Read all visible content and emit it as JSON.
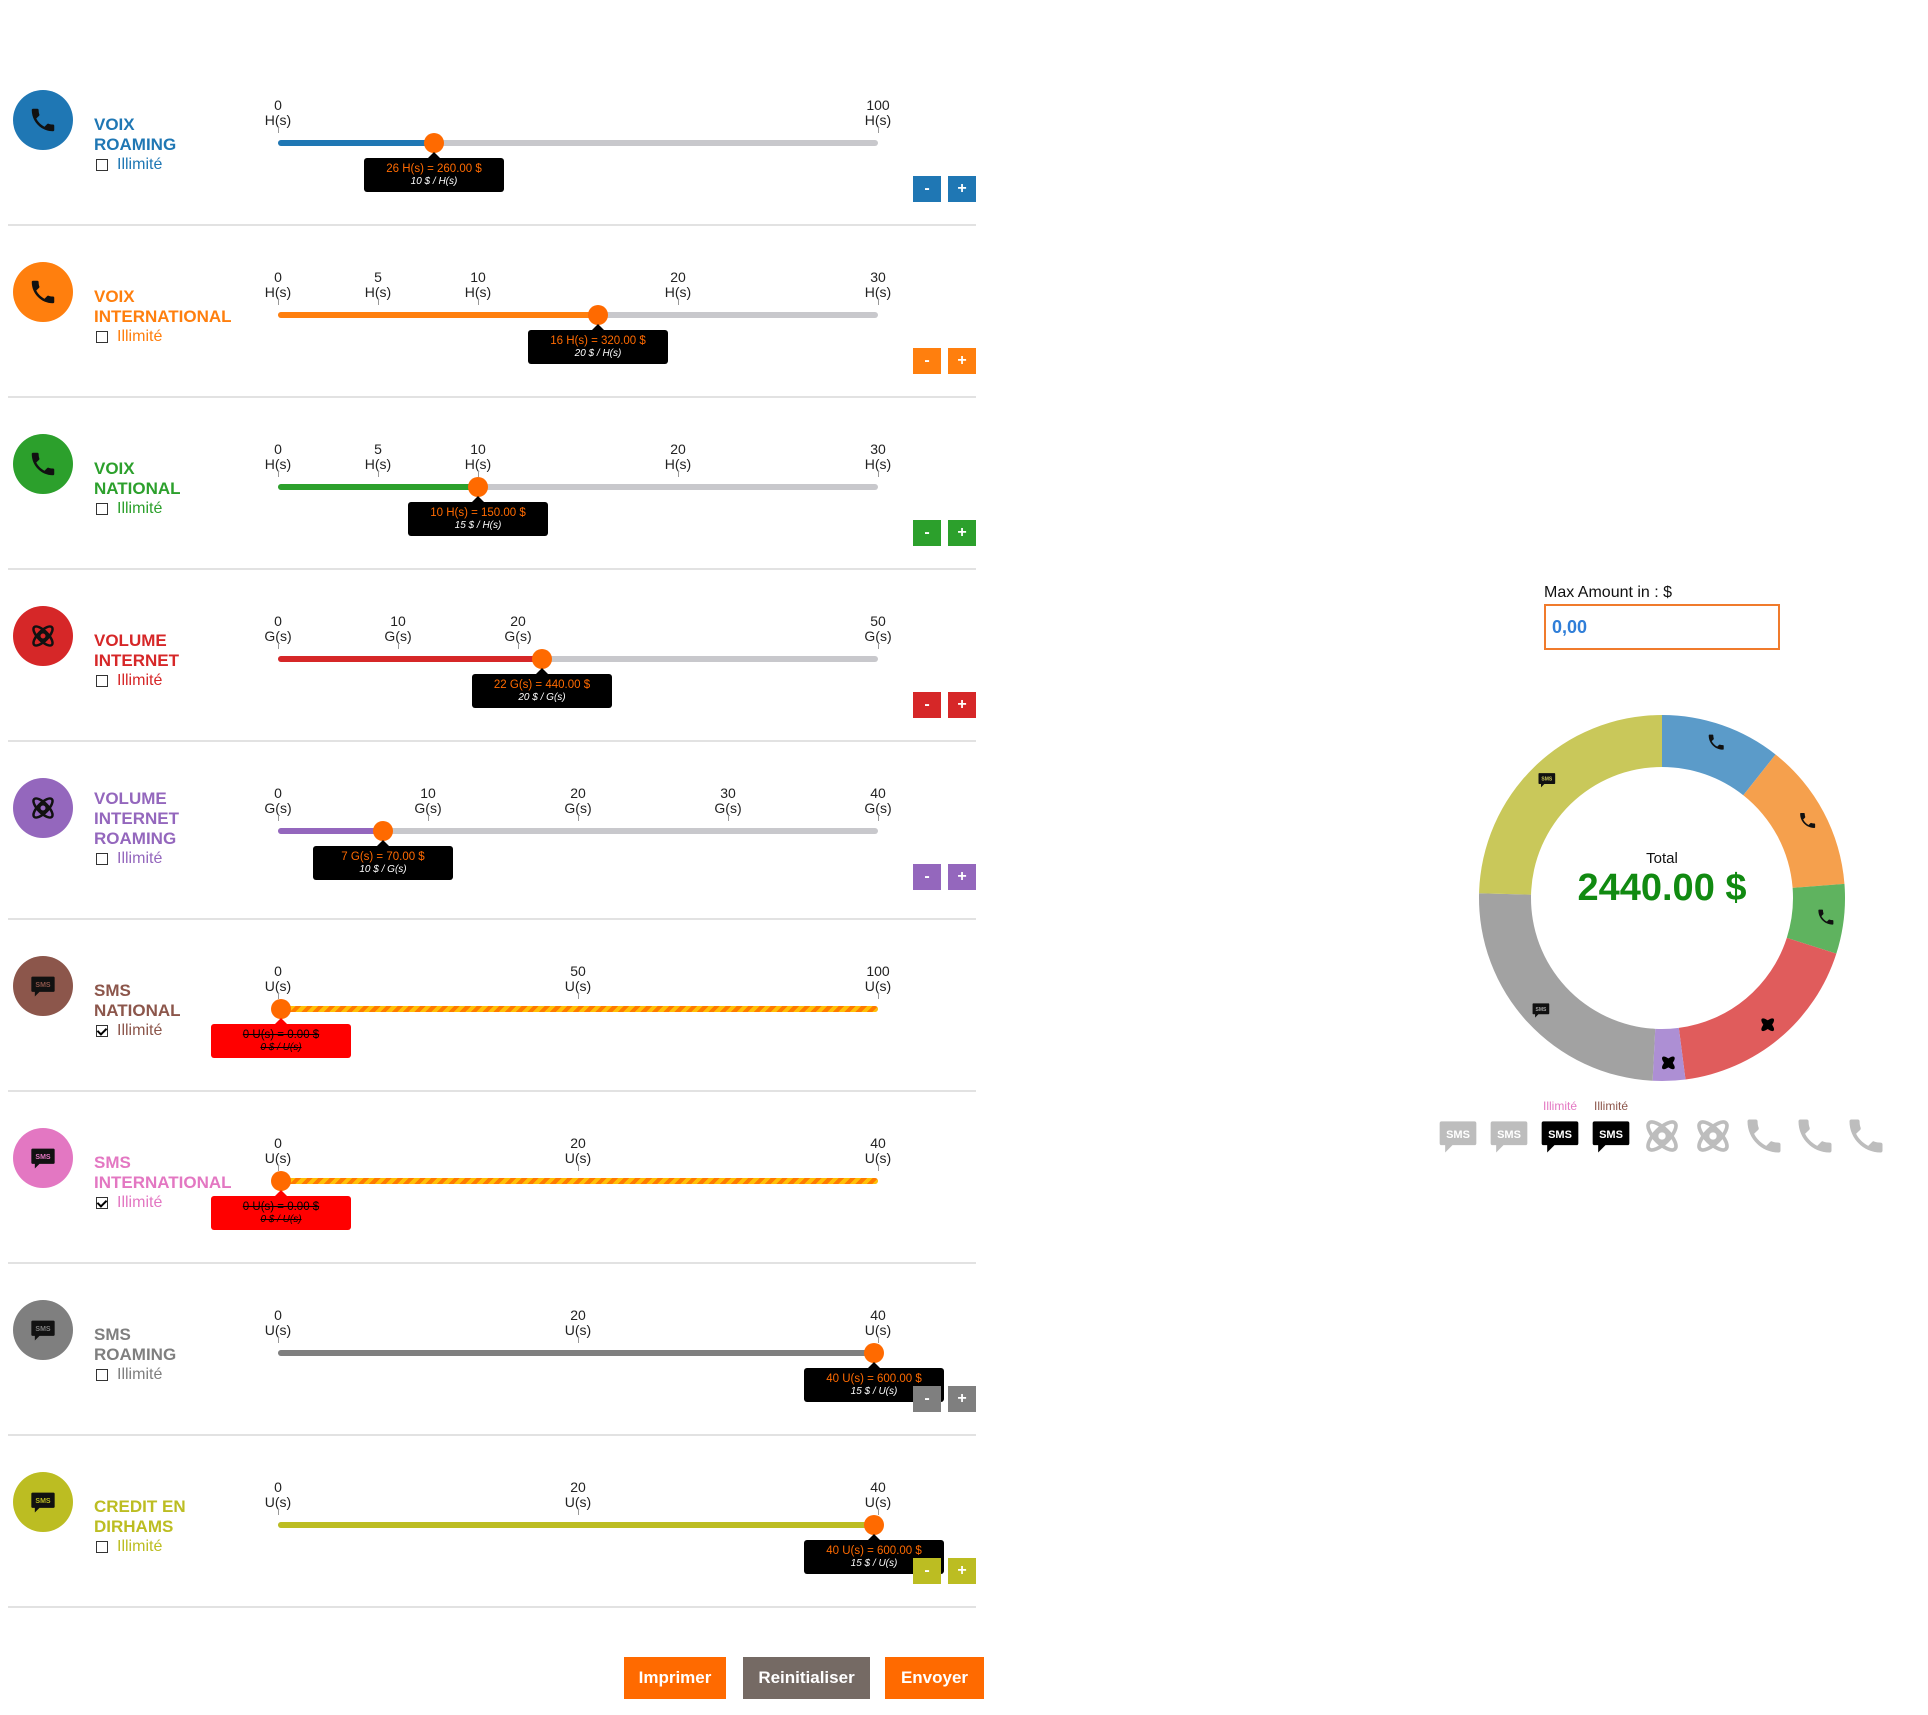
{
  "rows": [
    {
      "id": "voix-roaming",
      "title": [
        "VOIX",
        "ROAMING"
      ],
      "color": "#1f77b4",
      "icon": "phone",
      "unlimited_label": "Illimité",
      "checked": false,
      "unit": "H(s)",
      "ticks": [
        0,
        100
      ],
      "min": 0,
      "max": 100,
      "value": 26,
      "tip_line1": "26 H(s) = 260.00 $",
      "tip_line2": "10 $ / H(s)",
      "controls": true,
      "minus": "-",
      "plus": "+"
    },
    {
      "id": "voix-international",
      "title": [
        "VOIX",
        "INTERNATIONAL"
      ],
      "color": "#ff7f0e",
      "icon": "phone",
      "unlimited_label": "Illimité",
      "checked": false,
      "unit": "H(s)",
      "ticks": [
        0,
        5,
        10,
        20,
        30
      ],
      "min": 0,
      "max": 30,
      "value": 16,
      "tip_line1": "16 H(s) = 320.00 $",
      "tip_line2": "20 $ / H(s)",
      "controls": true,
      "minus": "-",
      "plus": "+"
    },
    {
      "id": "voix-national",
      "title": [
        "VOIX",
        "NATIONAL"
      ],
      "color": "#2ca02c",
      "icon": "phone",
      "unlimited_label": "Illimité",
      "checked": false,
      "unit": "H(s)",
      "ticks": [
        0,
        5,
        10,
        20,
        30
      ],
      "min": 0,
      "max": 30,
      "value": 10,
      "tip_line1": "10 H(s) = 150.00 $",
      "tip_line2": "15 $ / H(s)",
      "controls": true,
      "minus": "-",
      "plus": "+"
    },
    {
      "id": "volume-internet",
      "title": [
        "VOLUME",
        "INTERNET"
      ],
      "color": "#d62728",
      "icon": "globe",
      "unlimited_label": "Illimité",
      "checked": false,
      "unit": "G(s)",
      "ticks": [
        0,
        10,
        20,
        50
      ],
      "min": 0,
      "max": 50,
      "value": 22,
      "tip_line1": "22 G(s) = 440.00 $",
      "tip_line2": "20 $ / G(s)",
      "controls": true,
      "minus": "-",
      "plus": "+"
    },
    {
      "id": "volume-internet-roaming",
      "title": [
        "VOLUME",
        "INTERNET",
        "ROAMING"
      ],
      "color": "#9467bd",
      "icon": "globe",
      "unlimited_label": "Illimité",
      "checked": false,
      "unit": "G(s)",
      "ticks": [
        0,
        10,
        20,
        30,
        40
      ],
      "min": 0,
      "max": 40,
      "value": 7,
      "tip_line1": "7 G(s) = 70.00 $",
      "tip_line2": "10 $ / G(s)",
      "controls": true,
      "minus": "-",
      "plus": "+"
    },
    {
      "id": "sms-national",
      "title": [
        "SMS",
        "NATIONAL"
      ],
      "color": "#8c564b",
      "icon": "sms",
      "unlimited_label": "Illimité",
      "checked": true,
      "unit": "U(s)",
      "ticks": [
        0,
        50,
        100
      ],
      "min": 0,
      "max": 100,
      "value": 0,
      "tip_line1": "0 U(s) = 0.00 $",
      "tip_line2": "0 $ / U(s)",
      "controls": false
    },
    {
      "id": "sms-international",
      "title": [
        "SMS",
        "INTERNATIONAL"
      ],
      "color": "#e377c2",
      "icon": "sms",
      "unlimited_label": "Illimité",
      "checked": true,
      "unit": "U(s)",
      "ticks": [
        0,
        20,
        40
      ],
      "min": 0,
      "max": 40,
      "value": 0,
      "tip_line1": "0 U(s) = 0.00 $",
      "tip_line2": "0 $ / U(s)",
      "controls": false
    },
    {
      "id": "sms-roaming",
      "title": [
        "SMS",
        "ROAMING"
      ],
      "color": "#7f7f7f",
      "icon": "sms",
      "unlimited_label": "Illimité",
      "checked": false,
      "unit": "U(s)",
      "ticks": [
        0,
        20,
        40
      ],
      "min": 0,
      "max": 40,
      "value": 40,
      "tip_line1": "40 U(s) = 600.00 $",
      "tip_line2": "15 $ / U(s)",
      "controls": true,
      "minus": "-",
      "plus": "+"
    },
    {
      "id": "credit-en-dirhams",
      "title": [
        "CREDIT EN",
        "DIRHAMS"
      ],
      "color": "#bcbd22",
      "icon": "sms",
      "unlimited_label": "Illimité",
      "checked": false,
      "unit": "U(s)",
      "ticks": [
        0,
        20,
        40
      ],
      "min": 0,
      "max": 40,
      "value": 40,
      "tip_line1": "40 U(s) = 600.00 $",
      "tip_line2": "15 $ / U(s)",
      "controls": true,
      "minus": "-",
      "plus": "+"
    }
  ],
  "buttons": {
    "print": "Imprimer",
    "reset": "Reinitialiser",
    "send": "Envoyer"
  },
  "max_amount": {
    "label": "Max Amount in : $",
    "value": "0,00"
  },
  "chart_data": {
    "type": "pie",
    "center_label": "Total",
    "total": "2440.00 $",
    "slices": [
      {
        "id": "voix-roaming",
        "value": 260,
        "color": "#5b9bc9",
        "icon": "phone"
      },
      {
        "id": "voix-international",
        "value": 320,
        "color": "#f5a04d",
        "icon": "phone"
      },
      {
        "id": "voix-national",
        "value": 150,
        "color": "#5fb35f",
        "icon": "phone"
      },
      {
        "id": "volume-internet",
        "value": 440,
        "color": "#e05c5c",
        "icon": "globe"
      },
      {
        "id": "volume-internet-roaming",
        "value": 70,
        "color": "#ad8fd4",
        "icon": "globe"
      },
      {
        "id": "sms-roaming",
        "value": 600,
        "color": "#a2a2a2",
        "icon": "sms"
      },
      {
        "id": "credit-en-dirhams",
        "value": 600,
        "color": "#c9c85a",
        "icon": "sms"
      }
    ]
  },
  "legend": [
    {
      "icon": "sms",
      "active": false,
      "label": ""
    },
    {
      "icon": "sms",
      "active": false,
      "label": ""
    },
    {
      "icon": "sms",
      "active": true,
      "label": "Illimité",
      "label_color": "#e377c2"
    },
    {
      "icon": "sms",
      "active": true,
      "label": "Illimité",
      "label_color": "#8c564b"
    },
    {
      "icon": "globe",
      "active": false,
      "label": ""
    },
    {
      "icon": "globe",
      "active": false,
      "label": ""
    },
    {
      "icon": "phone",
      "active": false,
      "label": ""
    },
    {
      "icon": "phone",
      "active": false,
      "label": ""
    },
    {
      "icon": "phone",
      "active": false,
      "label": ""
    }
  ]
}
